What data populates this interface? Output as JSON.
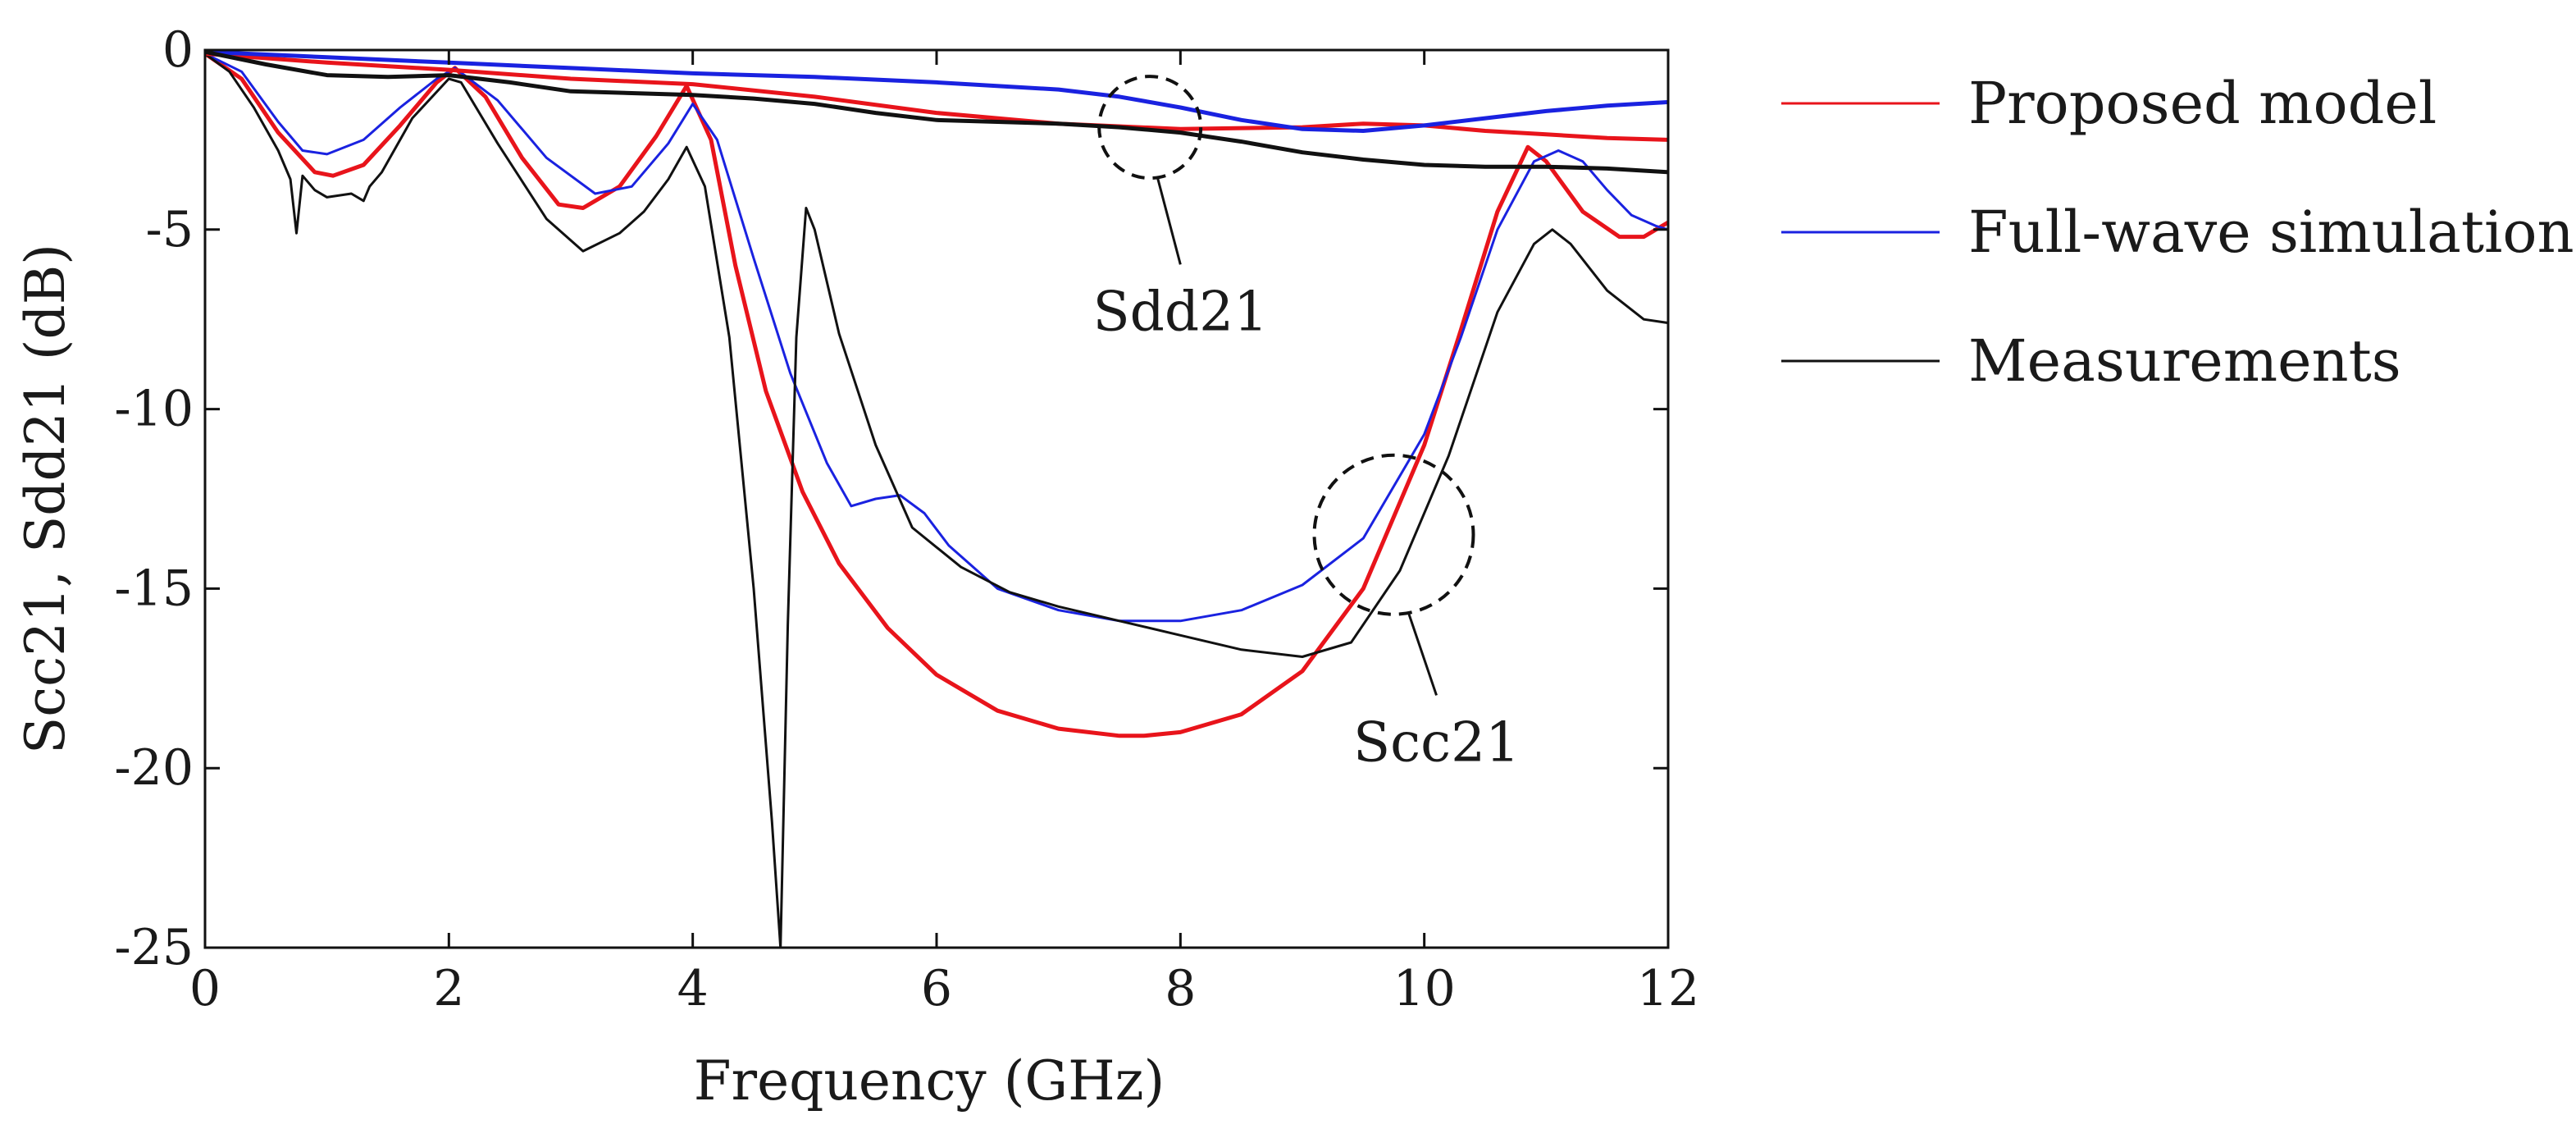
{
  "chart_data": {
    "type": "line",
    "title": "",
    "xlabel": "Frequency (GHz)",
    "ylabel": "Scc21, Sdd21 (dB)",
    "xlim": [
      0,
      12
    ],
    "ylim": [
      -25,
      0
    ],
    "xticks": [
      0,
      2,
      4,
      6,
      8,
      10,
      12
    ],
    "yticks": [
      0,
      -5,
      -10,
      -15,
      -20,
      -25
    ],
    "xtick_labels": [
      "0",
      "2",
      "4",
      "6",
      "8",
      "10",
      "12"
    ],
    "ytick_labels": [
      "0",
      "-5",
      "-10",
      "-15",
      "-20",
      "-25"
    ],
    "grid": false,
    "legend_position": "right",
    "series": [
      {
        "name": "Proposed model",
        "color": "#e8141b",
        "group": "Scc21",
        "x": [
          0,
          0.3,
          0.6,
          0.9,
          1.05,
          1.3,
          1.6,
          1.9,
          2.05,
          2.3,
          2.6,
          2.9,
          3.1,
          3.4,
          3.7,
          3.95,
          4.15,
          4.35,
          4.6,
          4.9,
          5.2,
          5.6,
          6.0,
          6.5,
          7.0,
          7.5,
          7.7,
          8.0,
          8.5,
          9.0,
          9.5,
          10.0,
          10.3,
          10.6,
          10.85,
          11.0,
          11.3,
          11.6,
          11.8,
          12.0
        ],
        "y": [
          -0.1,
          -0.8,
          -2.3,
          -3.4,
          -3.5,
          -3.2,
          -2.1,
          -0.9,
          -0.5,
          -1.3,
          -3.0,
          -4.3,
          -4.4,
          -3.8,
          -2.4,
          -1.0,
          -2.5,
          -6.0,
          -9.5,
          -12.3,
          -14.3,
          -16.1,
          -17.4,
          -18.4,
          -18.9,
          -19.1,
          -19.1,
          -19.0,
          -18.5,
          -17.3,
          -15.0,
          -11.0,
          -7.8,
          -4.5,
          -2.7,
          -3.1,
          -4.5,
          -5.2,
          -5.2,
          -4.8
        ]
      },
      {
        "name": "Full-wave simulation",
        "color": "#1a22e0",
        "group": "Scc21",
        "x": [
          0,
          0.3,
          0.6,
          0.8,
          1.0,
          1.3,
          1.6,
          1.9,
          2.05,
          2.4,
          2.8,
          3.2,
          3.5,
          3.8,
          4.0,
          4.2,
          4.5,
          4.8,
          5.1,
          5.3,
          5.5,
          5.7,
          5.9,
          6.1,
          6.5,
          7.0,
          7.5,
          8.0,
          8.5,
          9.0,
          9.5,
          10.0,
          10.3,
          10.6,
          10.9,
          11.1,
          11.3,
          11.5,
          11.7,
          11.9,
          12.0
        ],
        "y": [
          -0.1,
          -0.6,
          -2.0,
          -2.8,
          -2.9,
          -2.5,
          -1.6,
          -0.8,
          -0.5,
          -1.4,
          -3.0,
          -4.0,
          -3.8,
          -2.6,
          -1.5,
          -2.5,
          -5.8,
          -9.0,
          -11.5,
          -12.7,
          -12.5,
          -12.4,
          -12.9,
          -13.8,
          -15.0,
          -15.6,
          -15.9,
          -15.9,
          -15.6,
          -14.9,
          -13.6,
          -10.7,
          -8.0,
          -5.0,
          -3.1,
          -2.8,
          -3.1,
          -3.9,
          -4.6,
          -4.9,
          -5.0
        ]
      },
      {
        "name": "Measurements",
        "color": "#111111",
        "group": "Scc21",
        "x": [
          0,
          0.2,
          0.4,
          0.6,
          0.7,
          0.75,
          0.8,
          0.9,
          1.0,
          1.2,
          1.3,
          1.35,
          1.45,
          1.7,
          2.0,
          2.1,
          2.4,
          2.8,
          3.1,
          3.4,
          3.6,
          3.8,
          3.95,
          4.1,
          4.3,
          4.5,
          4.65,
          4.72,
          4.78,
          4.85,
          4.93,
          5.0,
          5.2,
          5.5,
          5.8,
          6.2,
          6.6,
          7.0,
          7.5,
          8.0,
          8.5,
          9.0,
          9.4,
          9.8,
          10.2,
          10.6,
          10.9,
          11.05,
          11.2,
          11.5,
          11.8,
          12.0
        ],
        "y": [
          -0.1,
          -0.6,
          -1.6,
          -2.8,
          -3.6,
          -5.1,
          -3.5,
          -3.9,
          -4.1,
          -4.0,
          -4.2,
          -3.8,
          -3.4,
          -1.9,
          -0.8,
          -0.9,
          -2.6,
          -4.7,
          -5.6,
          -5.1,
          -4.5,
          -3.6,
          -2.7,
          -3.8,
          -8.0,
          -15.0,
          -21.5,
          -25.0,
          -16.0,
          -8.0,
          -4.4,
          -5.0,
          -7.9,
          -11.0,
          -13.3,
          -14.4,
          -15.1,
          -15.5,
          -15.9,
          -16.3,
          -16.7,
          -16.9,
          -16.5,
          -14.5,
          -11.3,
          -7.3,
          -5.4,
          -5.0,
          -5.4,
          -6.7,
          -7.5,
          -7.6
        ]
      },
      {
        "name": "Proposed model",
        "color": "#e8141b",
        "group": "Sdd21",
        "x": [
          0,
          1,
          2,
          3,
          4,
          5,
          6,
          7,
          8,
          9,
          9.5,
          10,
          10.5,
          11,
          11.5,
          12
        ],
        "y": [
          -0.1,
          -0.35,
          -0.55,
          -0.8,
          -0.95,
          -1.3,
          -1.75,
          -2.05,
          -2.2,
          -2.15,
          -2.05,
          -2.1,
          -2.25,
          -2.35,
          -2.45,
          -2.5
        ]
      },
      {
        "name": "Full-wave simulation",
        "color": "#1a22e0",
        "group": "Sdd21",
        "x": [
          0,
          1,
          2,
          3,
          4,
          5,
          6,
          7,
          7.5,
          8,
          8.5,
          9,
          9.5,
          10,
          10.5,
          11,
          11.5,
          12
        ],
        "y": [
          -0.05,
          -0.2,
          -0.35,
          -0.5,
          -0.65,
          -0.75,
          -0.9,
          -1.1,
          -1.3,
          -1.6,
          -1.95,
          -2.2,
          -2.25,
          -2.1,
          -1.9,
          -1.7,
          -1.55,
          -1.45
        ]
      },
      {
        "name": "Measurements",
        "color": "#111111",
        "group": "Sdd21",
        "x": [
          0,
          0.5,
          1,
          1.5,
          2,
          2.5,
          3,
          3.5,
          4,
          4.5,
          5,
          5.5,
          6,
          6.5,
          7,
          7.5,
          8,
          8.5,
          9,
          9.5,
          10,
          10.5,
          11,
          11.5,
          12
        ],
        "y": [
          -0.05,
          -0.4,
          -0.7,
          -0.75,
          -0.7,
          -0.9,
          -1.15,
          -1.2,
          -1.25,
          -1.35,
          -1.5,
          -1.75,
          -1.95,
          -2.0,
          -2.05,
          -2.15,
          -2.3,
          -2.55,
          -2.85,
          -3.05,
          -3.2,
          -3.25,
          -3.25,
          -3.3,
          -3.4
        ]
      }
    ],
    "annotations": [
      {
        "text": "Sdd21",
        "circle_center": [
          7.75,
          -2.15
        ],
        "label_anchor": [
          8.0,
          -7.8
        ]
      },
      {
        "text": "Scc21",
        "circle_center": [
          9.75,
          -13.5
        ],
        "label_anchor": [
          10.1,
          -19.8
        ]
      }
    ]
  }
}
